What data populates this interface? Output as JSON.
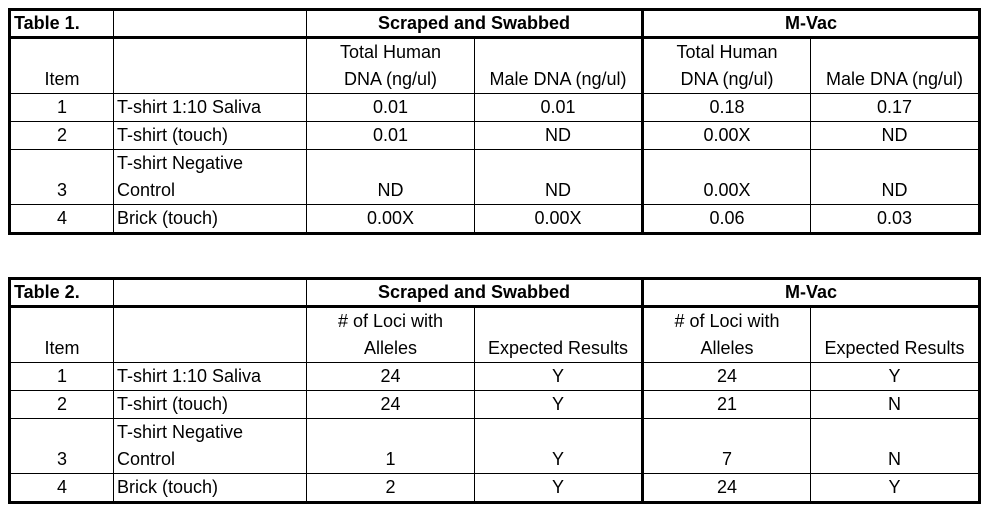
{
  "table1": {
    "title": "Table 1.",
    "group1": "Scraped and Swabbed",
    "group2": "M-Vac",
    "col_item": "Item",
    "sub1_line1": "Total Human",
    "sub1_line2": "DNA (ng/ul)",
    "sub2": "Male DNA (ng/ul)",
    "sub3_line1": "Total Human",
    "sub3_line2": "DNA (ng/ul)",
    "sub4": "Male DNA (ng/ul)",
    "rows": [
      {
        "item": "1",
        "sample": "T-shirt 1:10 Saliva",
        "v1": "0.01",
        "v2": "0.01",
        "v3": "0.18",
        "v4": "0.17"
      },
      {
        "item": "2",
        "sample": "T-shirt (touch)",
        "v1": "0.01",
        "v2": "ND",
        "v3": "0.00X",
        "v4": "ND"
      },
      {
        "item": "3",
        "sample_line1": "T-shirt Negative",
        "sample_line2": "Control",
        "v1": "ND",
        "v2": "ND",
        "v3": "0.00X",
        "v4": "ND"
      },
      {
        "item": "4",
        "sample": "Brick (touch)",
        "v1": "0.00X",
        "v2": "0.00X",
        "v3": "0.06",
        "v4": "0.03"
      }
    ]
  },
  "table2": {
    "title": "Table 2.",
    "group1": "Scraped and Swabbed",
    "group2": "M-Vac",
    "col_item": "Item",
    "sub1_line1": "# of Loci with",
    "sub1_line2": "Alleles",
    "sub2": "Expected Results",
    "sub3_line1": "# of Loci with",
    "sub3_line2": "Alleles",
    "sub4": "Expected Results",
    "rows": [
      {
        "item": "1",
        "sample": "T-shirt 1:10 Saliva",
        "v1": "24",
        "v2": "Y",
        "v3": "24",
        "v4": "Y"
      },
      {
        "item": "2",
        "sample": "T-shirt (touch)",
        "v1": "24",
        "v2": "Y",
        "v3": "21",
        "v4": "N"
      },
      {
        "item": "3",
        "sample_line1": "T-shirt Negative",
        "sample_line2": "Control",
        "v1": "1",
        "v2": "Y",
        "v3": "7",
        "v4": "N"
      },
      {
        "item": "4",
        "sample": "Brick (touch)",
        "v1": "2",
        "v2": "Y",
        "v3": "24",
        "v4": "Y"
      }
    ]
  }
}
